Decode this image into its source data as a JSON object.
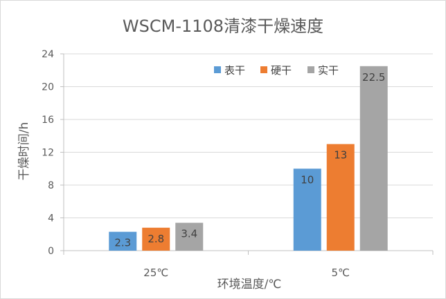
{
  "chart_data": {
    "type": "bar",
    "title": "WSCM-1108清漆干燥速度",
    "xlabel": "环境温度/℃",
    "ylabel": "干燥时间/h",
    "categories": [
      "25℃",
      "5℃"
    ],
    "series": [
      {
        "name": "表干",
        "values": [
          2.3,
          10
        ],
        "labels": [
          "2.3",
          "10"
        ],
        "color": "#5b9bd5"
      },
      {
        "name": "硬干",
        "values": [
          2.8,
          13
        ],
        "labels": [
          "2.8",
          "13"
        ],
        "color": "#ed7d31"
      },
      {
        "name": "实干",
        "values": [
          3.4,
          22.5
        ],
        "labels": [
          "3.4",
          "22.5"
        ],
        "color": "#a5a5a5"
      }
    ],
    "ylim": [
      0,
      24
    ],
    "yticks": [
      "0",
      "4",
      "8",
      "12",
      "16",
      "20",
      "24"
    ],
    "grid": true,
    "legend": "top-right",
    "data_labels": "inside-end"
  }
}
